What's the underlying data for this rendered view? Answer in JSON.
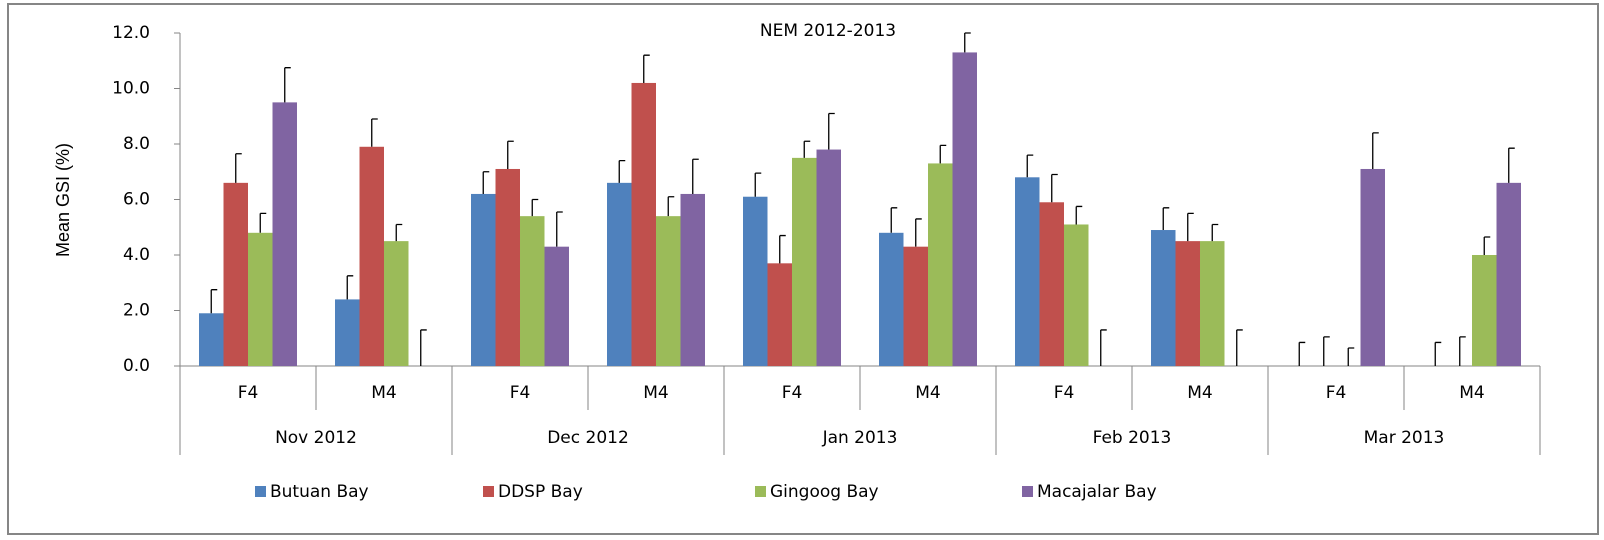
{
  "chart_data": {
    "type": "bar",
    "title": "NEM 2012-2013",
    "y_label": "Mean GSI (%)",
    "categories": [
      "F4",
      "M4",
      "F4",
      "M4",
      "F4",
      "M4",
      "F4",
      "M4",
      "F4",
      "M4"
    ],
    "groups": [
      "Nov 2012",
      "Dec 2012",
      "Jan 2013",
      "Feb 2013",
      "Mar 2013"
    ],
    "series": [
      {
        "name": "Butuan Bay",
        "color": "#4f81bd",
        "values": [
          1.9,
          2.4,
          6.2,
          6.6,
          6.1,
          4.8,
          6.8,
          4.9,
          0,
          0
        ],
        "errors": [
          0.85,
          0.85,
          0.8,
          0.8,
          0.85,
          0.9,
          0.8,
          0.8,
          0.85,
          0.85
        ]
      },
      {
        "name": "DDSP Bay",
        "color": "#c0504d",
        "values": [
          6.6,
          7.9,
          7.1,
          10.2,
          3.7,
          4.3,
          5.9,
          4.5,
          0,
          0
        ],
        "errors": [
          1.05,
          1.0,
          1.0,
          1.0,
          1.0,
          1.0,
          1.0,
          1.0,
          1.05,
          1.05
        ]
      },
      {
        "name": "Gingoog Bay",
        "color": "#9bbb59",
        "values": [
          4.8,
          4.5,
          5.4,
          5.4,
          7.5,
          7.3,
          5.1,
          4.5,
          0,
          4.0
        ],
        "errors": [
          0.7,
          0.6,
          0.6,
          0.7,
          0.6,
          0.65,
          0.65,
          0.6,
          0.65,
          0.65
        ]
      },
      {
        "name": "Macajalar Bay",
        "color": "#8064a2",
        "values": [
          9.5,
          0,
          4.3,
          6.2,
          7.8,
          11.3,
          0,
          0,
          7.1,
          6.6
        ],
        "errors": [
          1.25,
          1.3,
          1.25,
          1.25,
          1.3,
          0.7,
          1.3,
          1.3,
          1.3,
          1.25
        ]
      }
    ],
    "ylim": [
      0,
      12
    ],
    "yticks": [
      {
        "value": 0,
        "label": "0.0"
      },
      {
        "value": 2,
        "label": "2.0"
      },
      {
        "value": 4,
        "label": "4.0"
      },
      {
        "value": 6,
        "label": "6.0"
      },
      {
        "value": 8,
        "label": "8.0"
      },
      {
        "value": 10,
        "label": "10.0"
      },
      {
        "value": 12,
        "label": "12.0"
      }
    ],
    "legend": "bottom"
  }
}
